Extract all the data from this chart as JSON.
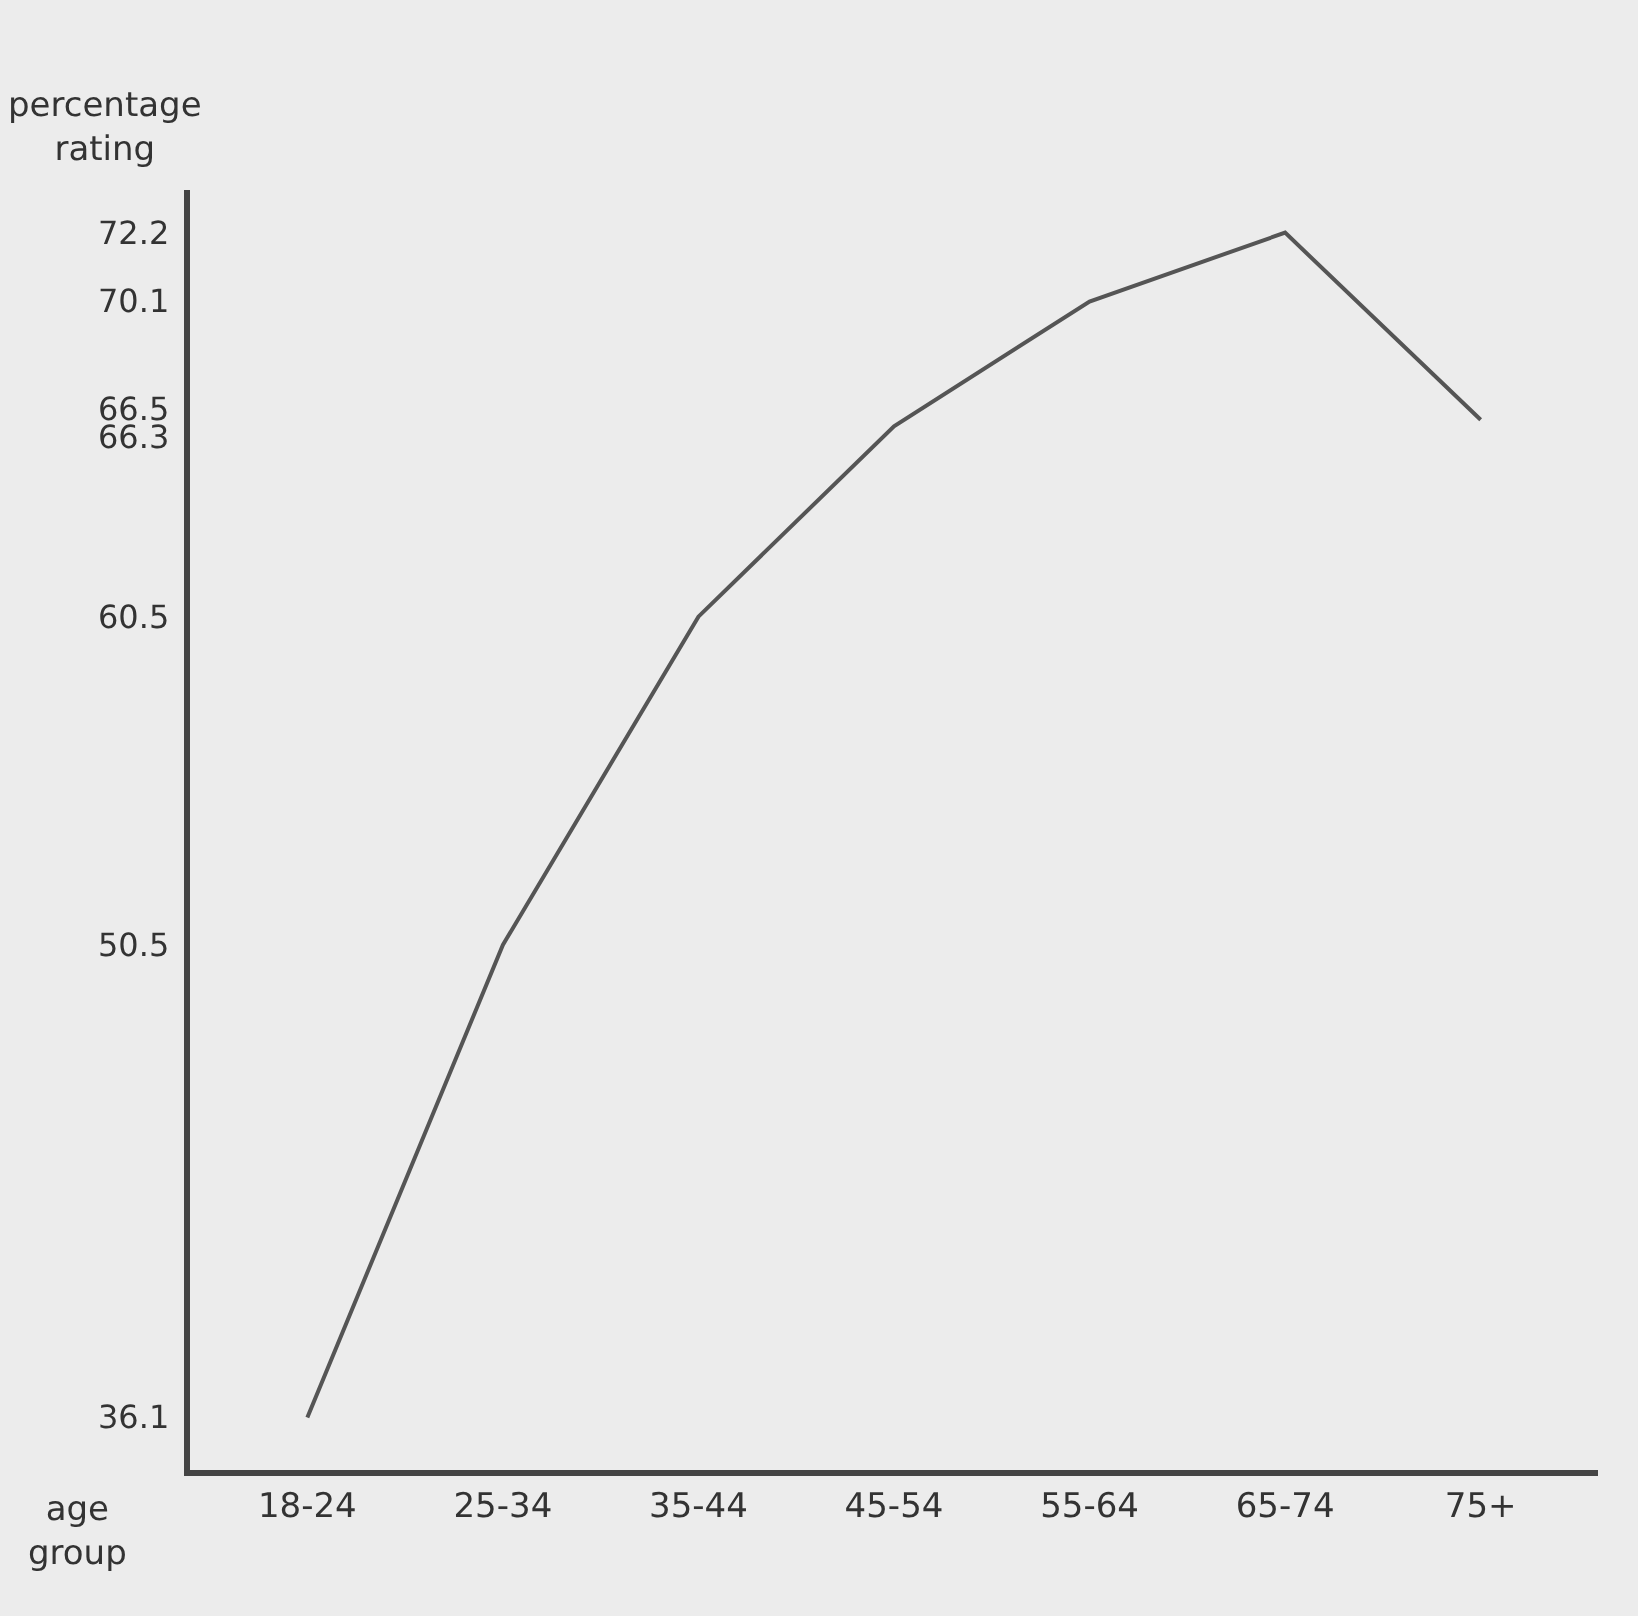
{
  "chart_data": {
    "type": "line",
    "xlabel": "age group",
    "ylabel": "percentage rating",
    "categories": [
      "18-24",
      "25-34",
      "35-44",
      "45-54",
      "55-64",
      "65-74",
      "75+"
    ],
    "series": [
      {
        "color": "#555555",
        "values": [
          36.1,
          50.5,
          60.5,
          66.3,
          70.1,
          72.2,
          66.5
        ]
      }
    ],
    "ylim": [
      34.5,
      73.5
    ],
    "yticks": [
      36.1,
      50.5,
      60.5,
      66.3,
      66.5,
      70.1,
      72.2
    ],
    "grid": false,
    "legend": false,
    "marker": "none",
    "line_style": "solid"
  }
}
